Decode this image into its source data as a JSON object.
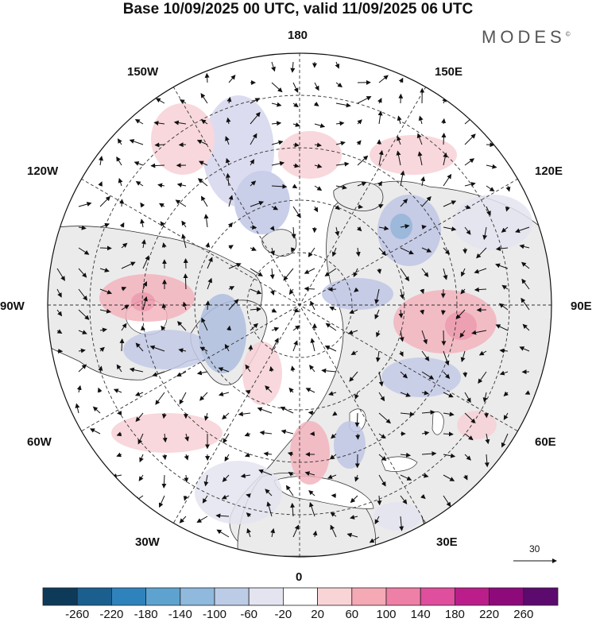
{
  "title": "Base 10/09/2025 00 UTC, valid 11/09/2025 06 UTC",
  "logo": "MODES",
  "logo_mark": "©",
  "lon_labels": {
    "top": "180",
    "top_left": "150W",
    "top_right": "150E",
    "upper_left": "120W",
    "upper_right": "120E",
    "left": "90W",
    "right": "90E",
    "lower_left": "60W",
    "lower_right": "60E",
    "bottom_left": "30W",
    "bottom_right": "30E",
    "bottom": "0"
  },
  "reference_vector": {
    "label": "30"
  },
  "colorbar": {
    "ticks": [
      "-260",
      "-220",
      "-180",
      "-140",
      "-100",
      "-60",
      "-20",
      "20",
      "60",
      "100",
      "140",
      "180",
      "220",
      "260"
    ],
    "colors": [
      "#0e3a5a",
      "#1b5f8f",
      "#2f83bd",
      "#5ea3cf",
      "#8fb9dd",
      "#bccce6",
      "#e4e4f1",
      "#ffffff",
      "#f9d4d6",
      "#f4a9b5",
      "#ee7fa6",
      "#e04e9e",
      "#bb1e8a",
      "#8e0a7b",
      "#5c0a6e"
    ]
  },
  "colors": {
    "land": "#ebebeb",
    "ocean": "#ffffff",
    "grid": "#333333"
  }
}
